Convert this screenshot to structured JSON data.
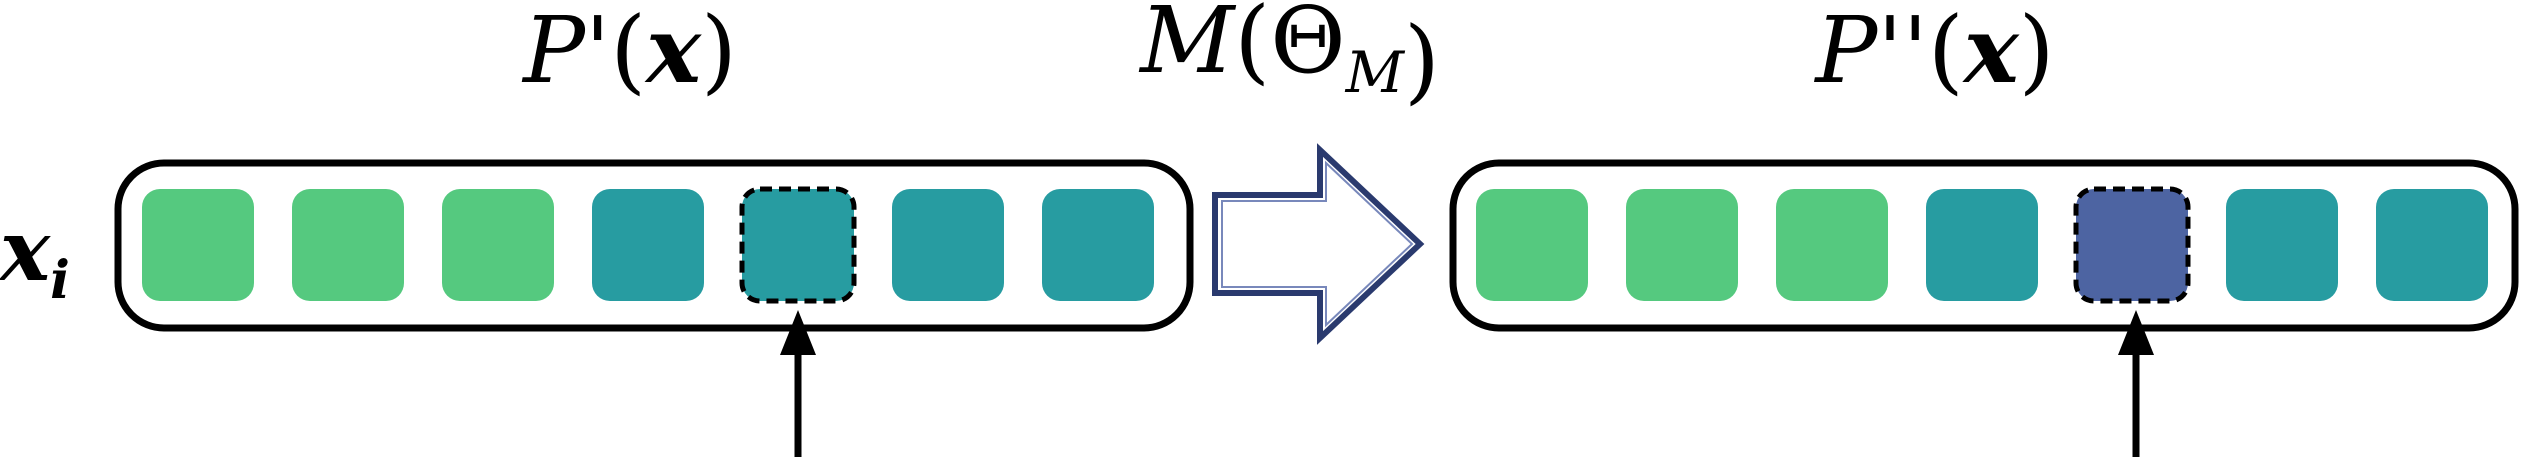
{
  "labels": {
    "input_label": "x_i",
    "before_title": "P'(x)",
    "operator_title": "M(Θ_M)",
    "after_title": "P''(x)"
  },
  "colors": {
    "light_green": "#55c97f",
    "teal": "#279ca1",
    "mutated": "#4d64a2",
    "arrow_fill": "#ffffff",
    "arrow_stroke": "#2a3a6e",
    "outline": "#000000"
  },
  "before_sequence": {
    "genes": [
      "light_green",
      "light_green",
      "light_green",
      "teal",
      "teal",
      "teal",
      "teal"
    ],
    "selected_index": 4
  },
  "after_sequence": {
    "genes": [
      "light_green",
      "light_green",
      "light_green",
      "teal",
      "mutated",
      "teal",
      "teal"
    ],
    "selected_index": 4
  }
}
